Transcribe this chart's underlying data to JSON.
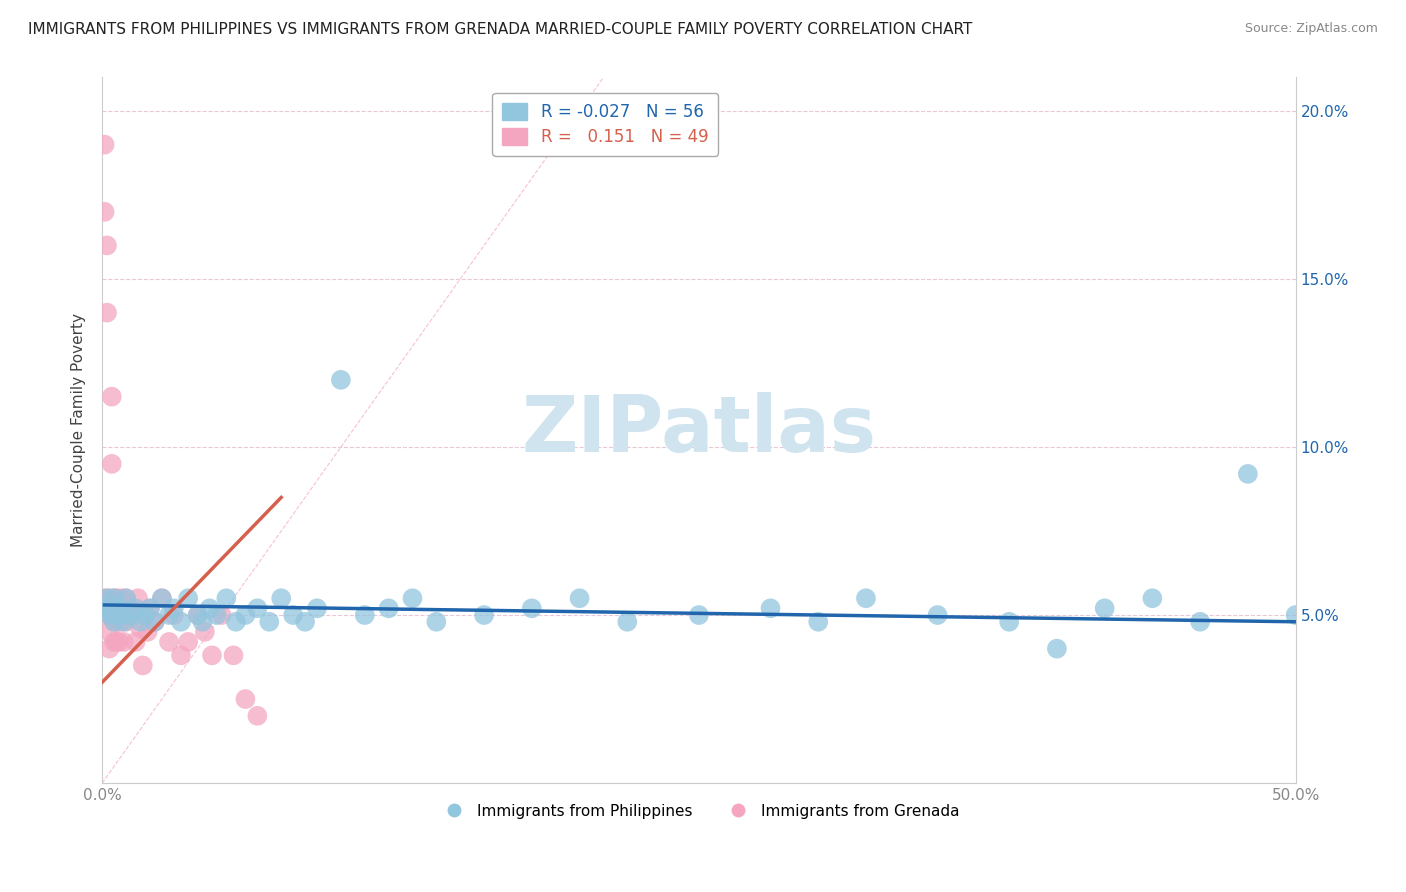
{
  "title": "IMMIGRANTS FROM PHILIPPINES VS IMMIGRANTS FROM GRENADA MARRIED-COUPLE FAMILY POVERTY CORRELATION CHART",
  "source": "Source: ZipAtlas.com",
  "xlabel": "",
  "ylabel": "Married-Couple Family Poverty",
  "xlim": [
    0.0,
    0.5
  ],
  "ylim": [
    0.0,
    0.21
  ],
  "xticks": [
    0.0,
    0.05,
    0.1,
    0.15,
    0.2,
    0.25,
    0.3,
    0.35,
    0.4,
    0.45,
    0.5
  ],
  "yticks": [
    0.0,
    0.05,
    0.1,
    0.15,
    0.2
  ],
  "legend_r_blue": "-0.027",
  "legend_n_blue": "56",
  "legend_r_pink": "0.151",
  "legend_n_pink": "49",
  "blue_color": "#92c5de",
  "pink_color": "#f4a6c0",
  "blue_line_color": "#2166ac",
  "pink_line_color": "#d6604d",
  "diag_color": "#f4a6c0",
  "watermark": "ZIPatlas",
  "watermark_color": "#d0e4f0",
  "philippines_x": [
    0.001,
    0.002,
    0.003,
    0.004,
    0.005,
    0.005,
    0.006,
    0.007,
    0.008,
    0.009,
    0.01,
    0.012,
    0.014,
    0.016,
    0.018,
    0.02,
    0.022,
    0.025,
    0.028,
    0.03,
    0.033,
    0.036,
    0.04,
    0.042,
    0.045,
    0.048,
    0.052,
    0.056,
    0.06,
    0.065,
    0.07,
    0.075,
    0.08,
    0.085,
    0.09,
    0.1,
    0.11,
    0.12,
    0.13,
    0.14,
    0.16,
    0.18,
    0.2,
    0.22,
    0.25,
    0.28,
    0.3,
    0.32,
    0.35,
    0.38,
    0.4,
    0.42,
    0.44,
    0.46,
    0.48,
    0.5
  ],
  "philippines_y": [
    0.052,
    0.055,
    0.05,
    0.052,
    0.055,
    0.048,
    0.05,
    0.052,
    0.05,
    0.048,
    0.055,
    0.05,
    0.052,
    0.048,
    0.05,
    0.052,
    0.048,
    0.055,
    0.05,
    0.052,
    0.048,
    0.055,
    0.05,
    0.048,
    0.052,
    0.05,
    0.055,
    0.048,
    0.05,
    0.052,
    0.048,
    0.055,
    0.05,
    0.048,
    0.052,
    0.12,
    0.05,
    0.052,
    0.055,
    0.048,
    0.05,
    0.052,
    0.055,
    0.048,
    0.05,
    0.052,
    0.048,
    0.055,
    0.05,
    0.048,
    0.04,
    0.052,
    0.055,
    0.048,
    0.092,
    0.05
  ],
  "grenada_x": [
    0.001,
    0.001,
    0.001,
    0.002,
    0.002,
    0.002,
    0.003,
    0.003,
    0.003,
    0.004,
    0.004,
    0.004,
    0.005,
    0.005,
    0.005,
    0.006,
    0.006,
    0.006,
    0.007,
    0.007,
    0.008,
    0.008,
    0.009,
    0.009,
    0.01,
    0.01,
    0.011,
    0.012,
    0.013,
    0.014,
    0.015,
    0.016,
    0.017,
    0.018,
    0.019,
    0.02,
    0.022,
    0.025,
    0.028,
    0.03,
    0.033,
    0.036,
    0.04,
    0.043,
    0.046,
    0.05,
    0.055,
    0.06,
    0.065
  ],
  "grenada_y": [
    0.19,
    0.17,
    0.055,
    0.16,
    0.14,
    0.05,
    0.055,
    0.045,
    0.04,
    0.115,
    0.095,
    0.05,
    0.055,
    0.048,
    0.042,
    0.055,
    0.05,
    0.042,
    0.048,
    0.042,
    0.055,
    0.048,
    0.05,
    0.042,
    0.055,
    0.048,
    0.05,
    0.052,
    0.05,
    0.042,
    0.055,
    0.046,
    0.035,
    0.05,
    0.045,
    0.052,
    0.048,
    0.055,
    0.042,
    0.05,
    0.038,
    0.042,
    0.05,
    0.045,
    0.038,
    0.05,
    0.038,
    0.025,
    0.02
  ],
  "blue_line_x": [
    0.001,
    0.5
  ],
  "blue_line_y": [
    0.053,
    0.048
  ],
  "pink_line_x": [
    0.0,
    0.075
  ],
  "pink_line_y": [
    0.03,
    0.085
  ]
}
